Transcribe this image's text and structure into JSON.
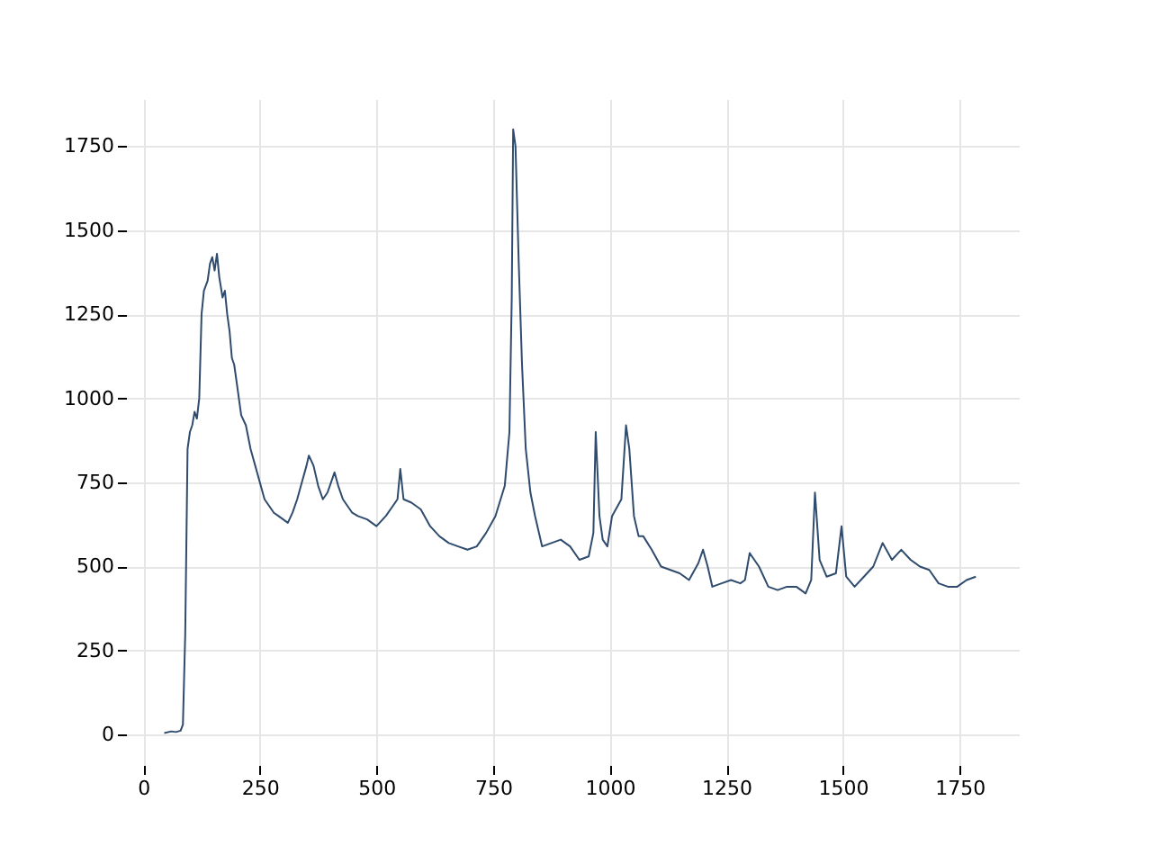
{
  "chart_data": {
    "type": "line",
    "xlim": [
      -37,
      1877
    ],
    "ylim": [
      -90,
      1890
    ],
    "xticks": [
      0,
      250,
      500,
      750,
      {
        "value": 1000,
        "label": "1000"
      },
      {
        "value": 1250,
        "label": "1250"
      },
      {
        "value": 1500,
        "label": "1500"
      },
      {
        "value": 1750,
        "label": "1750"
      }
    ],
    "yticks": [
      0,
      250,
      500,
      750,
      {
        "value": 1000,
        "label": "1000"
      },
      {
        "value": 1250,
        "label": "1250"
      },
      {
        "value": 1500,
        "label": "1500"
      },
      {
        "value": 1750,
        "label": "1750"
      }
    ],
    "grid": true,
    "series": [
      {
        "color": "#2f4b6e",
        "x": [
          45,
          60,
          70,
          80,
          85,
          90,
          95,
          100,
          105,
          110,
          115,
          120,
          125,
          130,
          138,
          143,
          148,
          153,
          158,
          163,
          170,
          175,
          180,
          185,
          190,
          195,
          200,
          210,
          220,
          230,
          240,
          250,
          260,
          270,
          280,
          290,
          300,
          310,
          320,
          330,
          340,
          350,
          355,
          365,
          375,
          385,
          395,
          405,
          410,
          418,
          428,
          438,
          448,
          460,
          480,
          500,
          520,
          535,
          545,
          551,
          558,
          575,
          595,
          615,
          635,
          655,
          675,
          695,
          715,
          735,
          755,
          775,
          785,
          790,
          793,
          798,
          805,
          812,
          820,
          830,
          840,
          855,
          875,
          895,
          915,
          935,
          955,
          965,
          970,
          978,
          985,
          995,
          1005,
          1025,
          1035,
          1042,
          1052,
          1062,
          1072,
          1090,
          1110,
          1130,
          1150,
          1170,
          1190,
          1200,
          1210,
          1220,
          1240,
          1260,
          1280,
          1290,
          1300,
          1320,
          1340,
          1360,
          1380,
          1400,
          1420,
          1432,
          1440,
          1450,
          1465,
          1485,
          1497,
          1507,
          1525,
          1545,
          1565,
          1585,
          1605,
          1625,
          1645,
          1665,
          1685,
          1705,
          1725,
          1745,
          1765,
          1785
        ],
        "values": [
          5,
          10,
          8,
          12,
          30,
          300,
          850,
          900,
          920,
          960,
          940,
          1000,
          1250,
          1320,
          1350,
          1400,
          1420,
          1380,
          1430,
          1360,
          1300,
          1320,
          1250,
          1200,
          1120,
          1100,
          1050,
          950,
          920,
          850,
          800,
          750,
          700,
          680,
          660,
          650,
          640,
          630,
          660,
          700,
          750,
          800,
          830,
          800,
          740,
          700,
          720,
          760,
          780,
          740,
          700,
          680,
          660,
          650,
          640,
          620,
          650,
          680,
          700,
          790,
          700,
          690,
          670,
          620,
          590,
          570,
          560,
          550,
          560,
          600,
          650,
          740,
          900,
          1300,
          1800,
          1750,
          1400,
          1100,
          850,
          720,
          650,
          560,
          570,
          580,
          560,
          520,
          530,
          600,
          900,
          650,
          580,
          560,
          650,
          700,
          920,
          850,
          650,
          590,
          590,
          550,
          500,
          490,
          480,
          460,
          510,
          550,
          500,
          440,
          450,
          460,
          450,
          460,
          540,
          500,
          440,
          430,
          440,
          440,
          420,
          460,
          720,
          520,
          470,
          480,
          620,
          470,
          440,
          470,
          500,
          570,
          520,
          550,
          520,
          500,
          490,
          450,
          440,
          440,
          460,
          470
        ]
      }
    ]
  }
}
